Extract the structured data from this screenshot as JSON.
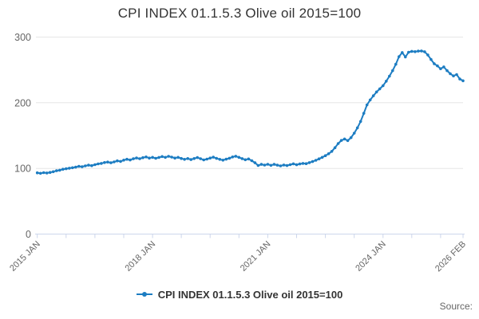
{
  "title": "CPI INDEX 01.1.5.3 Olive oil 2015=100",
  "legend": {
    "label": "CPI INDEX 01.1.5.3 Olive oil 2015=100"
  },
  "source_label": "Source:",
  "colors": {
    "line": "#1d7dc2",
    "grid": "#e6e6e6",
    "axis": "#ccd6eb",
    "tick_label": "#666666",
    "title_text": "#333333"
  },
  "chart_data": {
    "type": "line",
    "title": "CPI INDEX 01.1.5.3 Olive oil 2015=100",
    "xlabel": "",
    "ylabel": "",
    "ylim": [
      0,
      300
    ],
    "yticks": [
      0,
      100,
      200,
      300
    ],
    "grid": true,
    "legend_position": "bottom",
    "x_unit": "month",
    "x_start": "2015 JAN",
    "x_end": "2026 FEB",
    "x_tick_interval_months": 9,
    "x_tick_labels": [
      {
        "month_index": 0,
        "label": "2015 JAN"
      },
      {
        "month_index": 36,
        "label": "2018 JAN"
      },
      {
        "month_index": 72,
        "label": "2021 JAN"
      },
      {
        "month_index": 108,
        "label": "2024 JAN"
      },
      {
        "month_index": 133,
        "label": "2026 FEB"
      }
    ],
    "series": [
      {
        "name": "CPI INDEX 01.1.5.3 Olive oil 2015=100",
        "values": [
          93.3,
          92.6,
          93.5,
          93.0,
          93.9,
          95.0,
          96.4,
          97.3,
          98.7,
          99.5,
          100.3,
          101.1,
          101.9,
          103.1,
          102.5,
          103.9,
          105.0,
          104.2,
          105.7,
          106.9,
          107.6,
          108.9,
          109.7,
          108.6,
          109.9,
          111.5,
          110.7,
          112.6,
          113.9,
          112.8,
          114.7,
          115.9,
          114.8,
          116.3,
          117.4,
          115.8,
          116.9,
          115.4,
          116.7,
          118.1,
          116.9,
          118.4,
          117.2,
          115.7,
          116.9,
          115.2,
          113.8,
          115.0,
          113.4,
          115.0,
          116.5,
          114.8,
          112.9,
          114.2,
          115.8,
          117.1,
          115.3,
          113.8,
          112.6,
          114.0,
          115.5,
          117.5,
          118.5,
          116.8,
          114.9,
          113.2,
          114.4,
          111.8,
          108.6,
          104.4,
          106.2,
          105.1,
          106.3,
          104.7,
          106.1,
          104.9,
          103.8,
          105.2,
          104.3,
          105.7,
          107.0,
          105.6,
          106.8,
          107.6,
          107.3,
          108.8,
          110.4,
          112.3,
          114.5,
          116.8,
          119.4,
          122.3,
          126.0,
          131.5,
          137.8,
          142.6,
          144.8,
          142.4,
          146.9,
          153.6,
          161.8,
          171.5,
          183.9,
          196.8,
          204.3,
          210.6,
          216.4,
          221.2,
          226.0,
          232.8,
          240.5,
          248.9,
          258.6,
          270.2,
          276.4,
          269.8,
          276.9,
          278.3,
          277.8,
          278.6,
          278.9,
          277.6,
          272.8,
          265.9,
          259.4,
          256.2,
          251.8,
          254.6,
          248.9,
          244.2,
          240.8,
          242.9,
          236.1,
          233.4
        ]
      }
    ]
  }
}
